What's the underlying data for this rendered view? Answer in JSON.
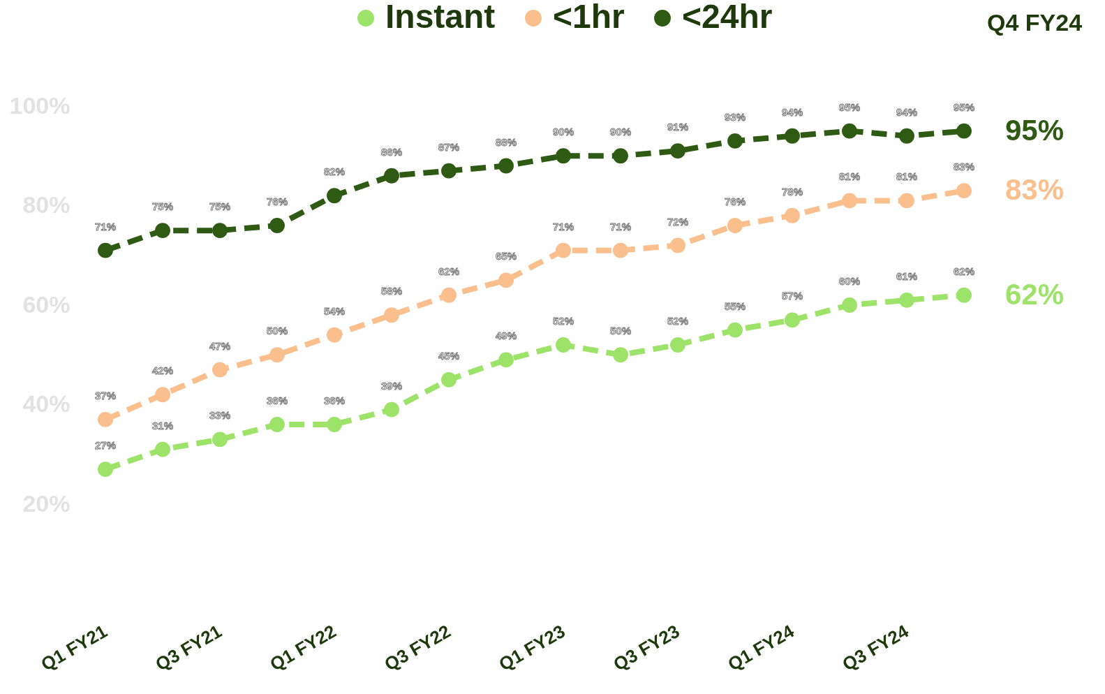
{
  "chart_data": {
    "type": "line",
    "categories": [
      "Q1 FY21",
      null,
      "Q3 FY21",
      null,
      "Q1 FY22",
      null,
      "Q3 FY22",
      null,
      "Q1 FY23",
      null,
      "Q3 FY23",
      null,
      "Q1 FY24",
      null,
      "Q3 FY24",
      null
    ],
    "series": [
      {
        "name": "Instant",
        "color": "#9de36a",
        "values": [
          27,
          31,
          33,
          36,
          36,
          39,
          45,
          49,
          52,
          50,
          52,
          55,
          57,
          60,
          61,
          62
        ],
        "value_labels": [
          "27%",
          "31%",
          "33%",
          "36%",
          "36%",
          "39%",
          "45%",
          "49%",
          "52%",
          "50%",
          "52%",
          "55%",
          "57%",
          "60%",
          "61%",
          "62%"
        ]
      },
      {
        "name": "<1hr",
        "color": "#fbbf8e",
        "values": [
          37,
          42,
          47,
          50,
          54,
          58,
          62,
          65,
          71,
          71,
          72,
          76,
          78,
          81,
          81,
          83
        ],
        "value_labels": [
          "37%",
          "42%",
          "47%",
          "50%",
          "54%",
          "58%",
          "62%",
          "65%",
          "71%",
          "71%",
          "72%",
          "76%",
          "78%",
          "81%",
          "81%",
          "83%"
        ]
      },
      {
        "name": "<24hr",
        "color": "#2f5a14",
        "values": [
          71,
          75,
          75,
          76,
          82,
          86,
          87,
          88,
          90,
          90,
          91,
          93,
          94,
          95,
          94,
          95
        ],
        "value_labels": [
          "71%",
          "75%",
          "75%",
          "76%",
          "82%",
          "86%",
          "87%",
          "88%",
          "90%",
          "90%",
          "91%",
          "93%",
          "94%",
          "95%",
          "94%",
          "95%"
        ]
      }
    ],
    "ylim": [
      20,
      100
    ],
    "yticks": [
      {
        "value": 20,
        "label": "20%"
      },
      {
        "value": 40,
        "label": "40%"
      },
      {
        "value": 60,
        "label": "60%"
      },
      {
        "value": 80,
        "label": "80%"
      },
      {
        "value": 100,
        "label": "100%"
      }
    ],
    "annotations": [
      "Q4 FY24",
      "95%",
      "83%",
      "62%"
    ],
    "legend": "top",
    "grid": false,
    "marker": "circle",
    "line_style": "dashed"
  }
}
